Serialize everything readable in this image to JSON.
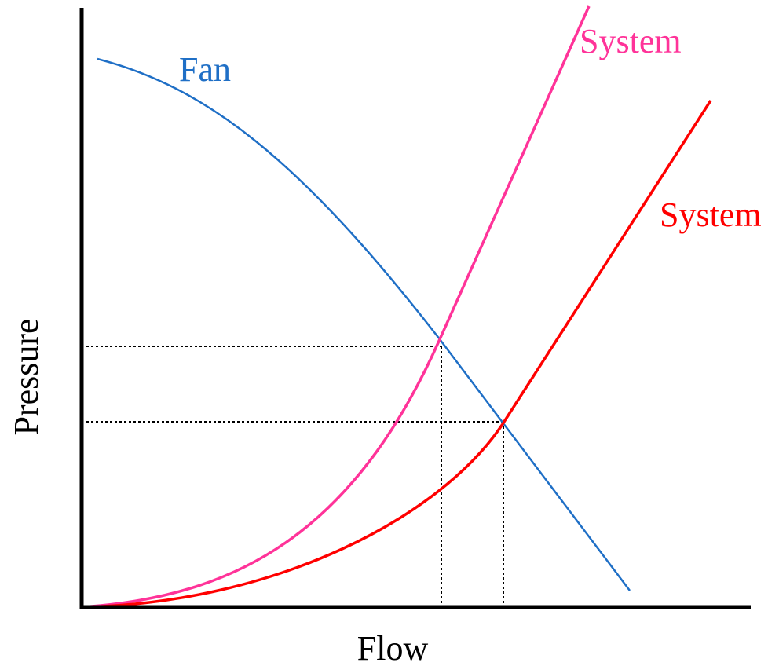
{
  "curves": {
    "fan": {
      "label": "Fan"
    },
    "system_1": {
      "label": "System"
    },
    "system_2": {
      "label": "System"
    }
  },
  "axes": {
    "y_label": "Pressure",
    "x_label": "Flow"
  }
}
